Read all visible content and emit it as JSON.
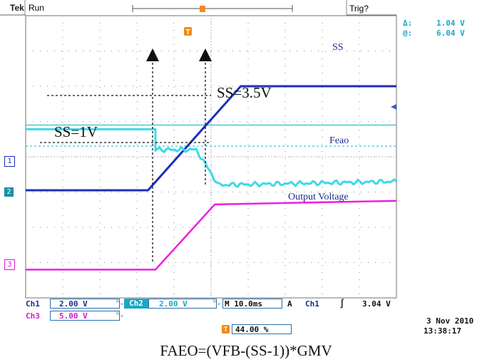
{
  "header": {
    "brand": "Tek",
    "mode": "Run",
    "trigger_status": "Trig?",
    "cursor_delta_label": "Δ:",
    "cursor_delta_value": "1.04 V",
    "cursor_at_label": "@:",
    "cursor_at_value": "6.04 V"
  },
  "channel_markers": [
    "1",
    "2",
    "3"
  ],
  "annotations": {
    "ss_1v": "SS=1V",
    "ss_35v": "SS=3.5V",
    "ss_label": "SS",
    "feao_label": "Feao",
    "output_label": "Output Voltage"
  },
  "footer": {
    "ch1_label": "Ch1",
    "ch1_scale": "2.00 V",
    "ch2_label": "Ch2",
    "ch2_scale": "2.00 V",
    "ch3_label": "Ch3",
    "ch3_scale": "5.00 V",
    "timebase": "M 10.0ms",
    "trigger_src_label": "A",
    "trigger_channel": "Ch1",
    "trigger_slope": "∫",
    "trigger_level": "3.04 V",
    "trigger_pos": "44.00 %",
    "date": "3 Nov 2010",
    "time": "13:38:17"
  },
  "caption": "FAEO=(VFB-(SS-1))*GMV",
  "colors": {
    "ss": "#1c2fb8",
    "feao": "#3fd9e8",
    "output": "#ee1ee0",
    "grid": "#8a8a8a",
    "trigger": "#f08a1c"
  },
  "chart_data": {
    "type": "line",
    "x_divisions": 10,
    "y_divisions": 8,
    "series": [
      {
        "name": "SS",
        "points": [
          [
            0,
            3.05
          ],
          [
            3.3,
            3.05
          ],
          [
            5.8,
            6.0
          ],
          [
            10,
            6.0
          ]
        ]
      },
      {
        "name": "Feao",
        "points": [
          [
            0,
            4.78
          ],
          [
            3.5,
            4.78
          ],
          [
            3.5,
            4.2
          ],
          [
            4.6,
            4.2
          ],
          [
            5.2,
            3.2
          ],
          [
            10,
            3.3
          ]
        ]
      },
      {
        "name": "Output Voltage",
        "points": [
          [
            0,
            0.8
          ],
          [
            3.5,
            0.8
          ],
          [
            5.1,
            2.65
          ],
          [
            10,
            2.75
          ]
        ]
      }
    ]
  }
}
